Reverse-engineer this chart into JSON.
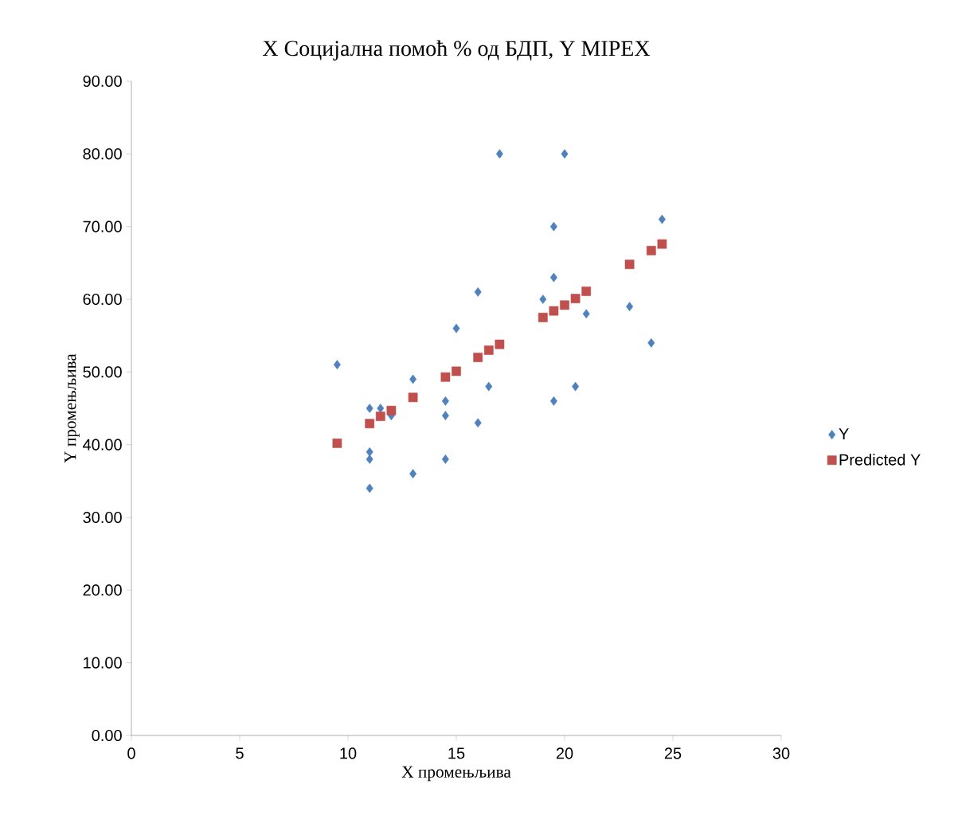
{
  "chart_data": {
    "type": "scatter",
    "title": "X Социјална помоћ % од БДП, Y MIPEX",
    "xlabel": "X промењљива",
    "ylabel": "Y промењљива",
    "xlim": [
      0,
      30
    ],
    "ylim": [
      0,
      90
    ],
    "xticks": [
      0,
      5,
      10,
      15,
      20,
      25,
      30
    ],
    "yticks": [
      {
        "value": 0,
        "label": "0.00"
      },
      {
        "value": 10,
        "label": "10.00"
      },
      {
        "value": 20,
        "label": "20.00"
      },
      {
        "value": 30,
        "label": "30.00"
      },
      {
        "value": 40,
        "label": "40.00"
      },
      {
        "value": 50,
        "label": "50.00"
      },
      {
        "value": 60,
        "label": "60.00"
      },
      {
        "value": 70,
        "label": "70.00"
      },
      {
        "value": 80,
        "label": "80.00"
      },
      {
        "value": 90,
        "label": "90.00"
      }
    ],
    "legend": "right",
    "series": [
      {
        "name": "Y",
        "color": "#4f81bd",
        "marker": "diamond",
        "x": [
          9.5,
          11,
          11.5,
          12,
          11,
          11,
          11,
          13,
          13,
          14.5,
          14.5,
          14.5,
          15,
          16,
          16,
          16.5,
          17,
          19,
          19.5,
          19.5,
          19.5,
          20,
          20.5,
          21,
          23,
          24,
          24.5
        ],
        "values": [
          51,
          45,
          45,
          44,
          39,
          38,
          34,
          49,
          36,
          46,
          44,
          38,
          56,
          61,
          43,
          48,
          80,
          60,
          70,
          63,
          46,
          80,
          48,
          58,
          59,
          54,
          71
        ]
      },
      {
        "name": "Predicted Y",
        "color": "#c0504d",
        "marker": "square",
        "x": [
          9.5,
          11,
          11.5,
          12,
          13,
          14.5,
          15,
          16,
          16.5,
          17,
          19,
          19.5,
          20,
          20.5,
          21,
          23,
          24,
          24.5
        ],
        "values": [
          40.2,
          42.9,
          43.9,
          44.7,
          46.5,
          49.3,
          50.1,
          52.0,
          53.0,
          53.8,
          57.5,
          58.4,
          59.2,
          60.1,
          61.1,
          64.8,
          66.7,
          67.6
        ]
      }
    ]
  }
}
